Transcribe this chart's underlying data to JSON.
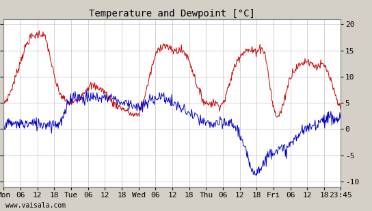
{
  "title": "Temperature and Dewpoint [°C]",
  "ylabel_right_ticks": [
    20,
    15,
    10,
    5,
    0,
    -5,
    -10
  ],
  "ylim": [
    -11,
    21
  ],
  "watermark": "www.vaisala.com",
  "bg_color": "#d4d0c8",
  "plot_bg_color": "#ffffff",
  "temp_color": "#cc0000",
  "dew_color": "#0000cc",
  "grid_color": "#c0c0c0",
  "title_fontsize": 10,
  "tick_fontsize": 8,
  "watermark_fontsize": 7,
  "num_points": 600,
  "total_hours": 119.75,
  "temp_control_t": [
    0,
    3,
    6,
    9,
    12,
    15,
    18,
    21,
    24,
    27,
    30,
    33,
    36,
    39,
    42,
    45,
    48,
    51,
    54,
    57,
    60,
    63,
    66,
    69,
    72,
    75,
    78,
    81,
    84,
    87,
    90,
    93,
    96,
    99,
    102,
    105,
    108,
    111,
    114,
    117,
    119.75
  ],
  "temp_control_v": [
    5,
    8,
    13,
    17,
    18,
    17,
    10,
    6,
    5,
    6,
    8,
    8,
    7,
    5,
    4,
    3,
    3,
    8,
    14,
    16,
    15,
    15,
    13,
    8,
    5,
    5,
    5,
    10,
    14,
    15,
    15,
    14,
    4,
    4,
    10,
    12,
    13,
    12,
    12,
    8,
    4
  ],
  "dew_control_t": [
    0,
    3,
    6,
    9,
    12,
    15,
    18,
    21,
    24,
    27,
    30,
    33,
    36,
    39,
    42,
    45,
    48,
    51,
    54,
    57,
    60,
    63,
    66,
    69,
    72,
    75,
    78,
    81,
    84,
    87,
    90,
    93,
    96,
    99,
    102,
    105,
    108,
    111,
    114,
    117,
    119.75
  ],
  "dew_control_v": [
    1,
    1,
    1,
    1,
    1,
    1,
    1,
    2,
    6,
    6,
    6,
    6,
    6,
    6,
    5,
    5,
    4,
    5,
    6,
    6,
    5,
    4,
    3,
    2,
    1,
    1,
    1,
    1,
    -1,
    -6,
    -8,
    -6,
    -4,
    -4,
    -3,
    -1,
    0,
    1,
    2,
    2,
    2
  ],
  "temp_noise": 0.4,
  "dew_noise": 0.6,
  "days": [
    "Mon",
    "Tue",
    "Wed",
    "Thu",
    "Fri"
  ],
  "hours": [
    "06",
    "12",
    "18"
  ]
}
